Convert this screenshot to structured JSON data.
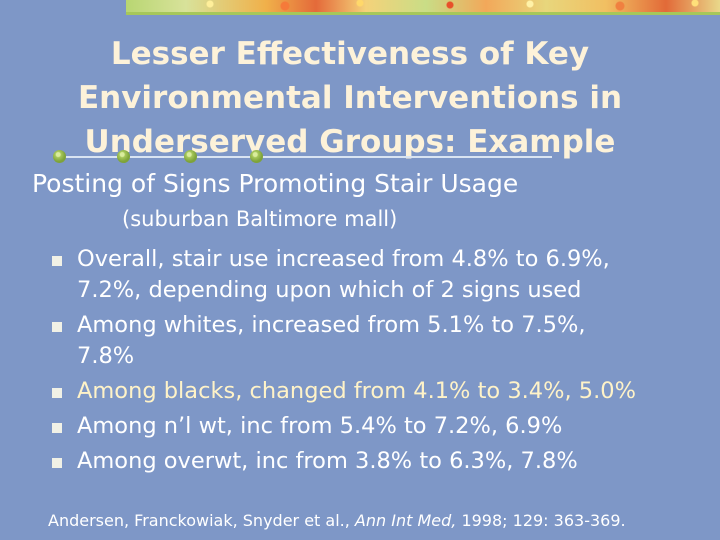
{
  "slide": {
    "title_lines": [
      "Lesser Effectiveness of Key",
      "Environmental Interventions in",
      "Underserved Groups:  Example"
    ],
    "subtitle": "Posting of Signs Promoting Stair Usage",
    "location": "(suburban Baltimore mall)",
    "bullets": [
      {
        "lines": [
          "Overall, stair use increased from 4.8% to 6.9%,",
          "7.2%, depending upon which of 2 signs used"
        ]
      },
      {
        "lines": [
          "Among whites, increased from 5.1% to 7.5%,",
          "7.8%"
        ]
      },
      {
        "lines": [
          "Among blacks, changed from 4.1% to 3.4%, 5.0%"
        ]
      },
      {
        "lines": [
          "Among n’l wt, inc from 5.4% to 7.2%, 6.9%"
        ]
      },
      {
        "lines": [
          "Among overwt, inc from 3.8% to 6.3%, 7.8%"
        ]
      }
    ],
    "bullet_icon": "square-bullet-icon",
    "highlight_color": "#fff3c8",
    "citation": {
      "authors": "Andersen, Franckowiak, Snyder et al.,",
      "journal": "Ann Int Med,",
      "details": "1998; 129: 363-369."
    }
  },
  "colors": {
    "background": "#7e97c7",
    "title": "#fdf2d9",
    "text": "#ffffff"
  }
}
